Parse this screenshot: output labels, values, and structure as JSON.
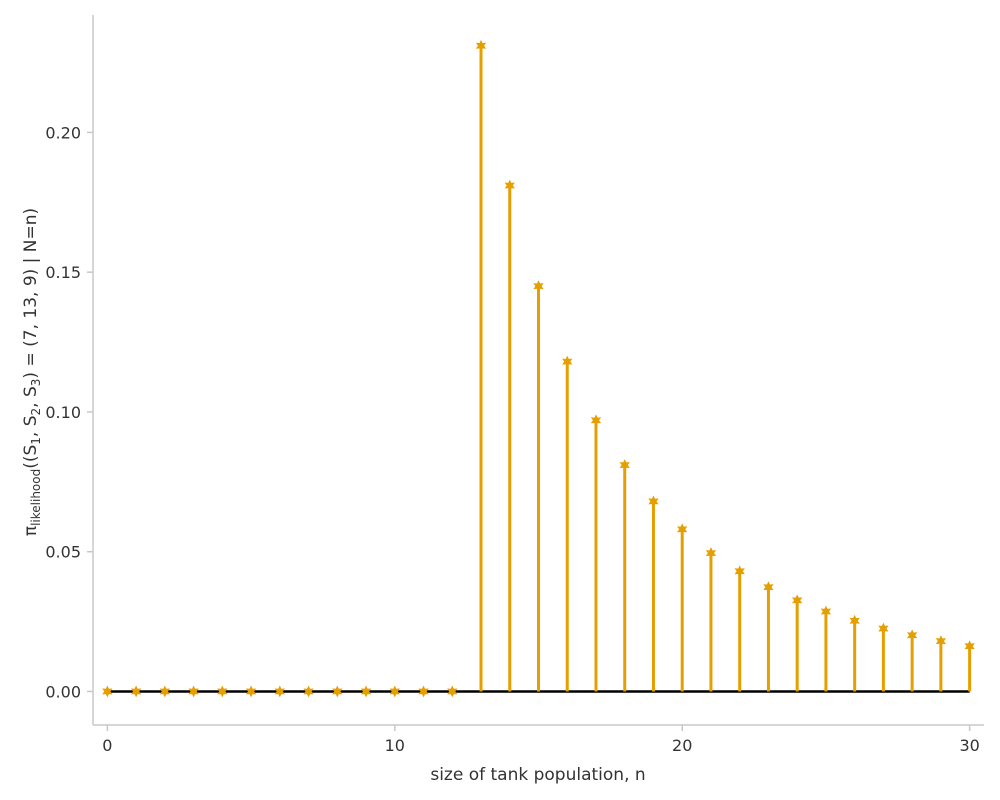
{
  "chart_data": {
    "type": "stem",
    "xlabel": "size of tank population, n",
    "ylabel": {
      "pi": "π",
      "sub": "likelihood",
      "a": "((S",
      "s1": "1",
      "b": ", S",
      "s2": "2",
      "c": ", S",
      "s3": "3",
      "d": ") = (7, 13, 9) | N=n)"
    },
    "xlim": [
      -0.5,
      30.5
    ],
    "ylim": [
      -0.012,
      0.242
    ],
    "xticks": [
      0,
      10,
      20,
      30
    ],
    "xtick_labels": [
      "0",
      "10",
      "20",
      "30"
    ],
    "yticks": [
      0.0,
      0.05,
      0.1,
      0.15,
      0.2
    ],
    "ytick_labels": [
      "0.00",
      "0.05",
      "0.10",
      "0.15",
      "0.20"
    ],
    "grid": false,
    "series": [
      {
        "x": [
          0,
          1,
          2,
          3,
          4,
          5,
          6,
          7,
          8,
          9,
          10,
          11,
          12,
          13,
          14,
          15,
          16,
          17,
          18,
          19,
          20,
          21,
          22,
          23,
          24,
          25,
          26,
          27,
          28,
          29,
          30
        ],
        "y": [
          0,
          0,
          0,
          0,
          0,
          0,
          0,
          0,
          0,
          0,
          0,
          0,
          0,
          0.231,
          0.181,
          0.145,
          0.118,
          0.097,
          0.081,
          0.068,
          0.058,
          0.0495,
          0.043,
          0.0373,
          0.0326,
          0.0286,
          0.0253,
          0.0225,
          0.0201,
          0.018,
          0.0162
        ]
      }
    ],
    "colors": {
      "stem": "#E69F00",
      "baseline": "#000000",
      "axis": "#c8c8c8"
    }
  }
}
